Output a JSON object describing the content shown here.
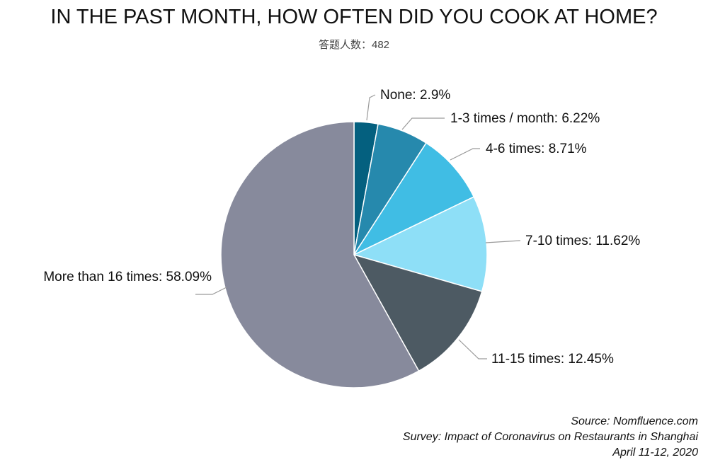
{
  "header": {
    "title": "IN THE PAST MONTH, HOW OFTEN DID YOU COOK AT HOME?",
    "subtitle": "答题人数：482"
  },
  "footer": {
    "source": "Source: Nomfluence.com",
    "survey": "Survey: Impact of Coronavirus on Restaurants in Shanghai",
    "date": "April 11-12, 2020"
  },
  "chart_data": {
    "type": "pie",
    "title": "IN THE PAST MONTH, HOW OFTEN DID YOU COOK AT HOME?",
    "slices": [
      {
        "label": "None",
        "value": 2.9,
        "display": "None: 2.9%",
        "color": "#04607f"
      },
      {
        "label": "1-3 times / month",
        "value": 6.22,
        "display": "1-3 times / month: 6.22%",
        "color": "#2689ad"
      },
      {
        "label": "4-6 times",
        "value": 8.71,
        "display": "4-6 times: 8.71%",
        "color": "#40bde4"
      },
      {
        "label": "7-10 times",
        "value": 11.62,
        "display": "7-10 times: 11.62%",
        "color": "#8edff7"
      },
      {
        "label": "11-15 times",
        "value": 12.45,
        "display": "11-15 times: 12.45%",
        "color": "#4d5a63"
      },
      {
        "label": "More than 16 times",
        "value": 58.09,
        "display": "More than 16 times: 58.09%",
        "color": "#878a9c"
      }
    ],
    "legend": "none",
    "start_angle": "top",
    "direction": "clockwise"
  }
}
